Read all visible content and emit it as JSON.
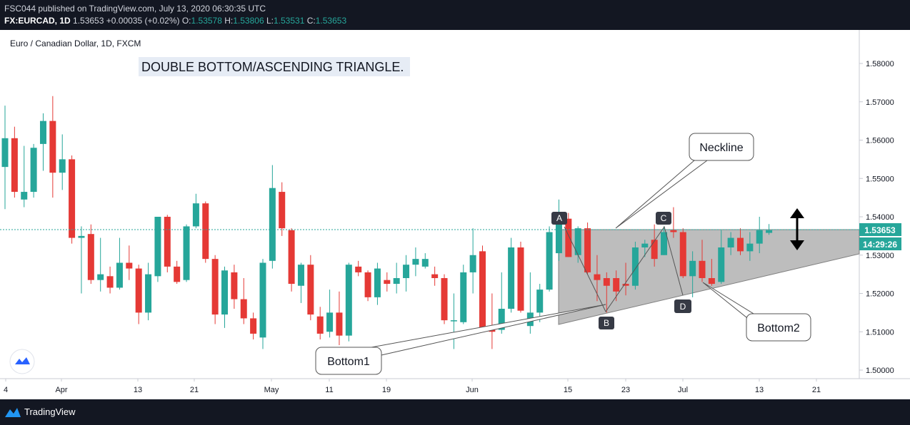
{
  "header": {
    "published": "FSC044 published on TradingView.com, July 13, 2020 06:30:35 UTC",
    "symbol": "FX:EURCAD, 1D",
    "price": "1.53653",
    "change": "+0.00035 (+0.02%)",
    "open_label": "O:",
    "open": "1.53578",
    "high_label": "H:",
    "high": "1.53806",
    "low_label": "L:",
    "low": "1.53531",
    "close_label": "C:",
    "close": "1.53653"
  },
  "chart_title": "Euro / Canadian Dollar, 1D, FXCM",
  "annotation_title": "DOUBLE BOTTOM/ASCENDING TRIANGLE.",
  "callouts": {
    "neckline": "Neckline",
    "bottom1": "Bottom1",
    "bottom2": "Bottom2"
  },
  "point_labels": [
    "A",
    "B",
    "C",
    "D"
  ],
  "price_badge": "1.53653",
  "time_badge": "14:29:26",
  "footer": {
    "brand": "TradingView"
  },
  "colors": {
    "up": "#26a69a",
    "down": "#e53935",
    "background": "#ffffff",
    "frame": "#131722",
    "badge": "#363a45",
    "triangle": "#b2b2b2"
  },
  "chart_data": {
    "type": "candlestick",
    "title": "Euro / Canadian Dollar, 1D, FXCM",
    "ylim": [
      1.4975,
      1.5855
    ],
    "y_ticks": [
      "1.58000",
      "1.57000",
      "1.56000",
      "1.55000",
      "1.54000",
      "1.53000",
      "1.52000",
      "1.51000",
      "1.50000"
    ],
    "x_ticks": [
      "4",
      "Apr",
      "13",
      "21",
      "May",
      "11",
      "19",
      "Jun",
      "15",
      "23",
      "Jul",
      "13",
      "21"
    ],
    "last_price": 1.53653,
    "candles": [
      {
        "o": 1.553,
        "h": 1.569,
        "l": 1.542,
        "c": 1.5605
      },
      {
        "o": 1.5605,
        "h": 1.5635,
        "l": 1.545,
        "c": 1.5465
      },
      {
        "o": 1.5445,
        "h": 1.5585,
        "l": 1.5425,
        "c": 1.5465
      },
      {
        "o": 1.5465,
        "h": 1.559,
        "l": 1.545,
        "c": 1.558
      },
      {
        "o": 1.559,
        "h": 1.567,
        "l": 1.552,
        "c": 1.565
      },
      {
        "o": 1.565,
        "h": 1.5715,
        "l": 1.545,
        "c": 1.5515
      },
      {
        "o": 1.5515,
        "h": 1.5615,
        "l": 1.547,
        "c": 1.555
      },
      {
        "o": 1.555,
        "h": 1.556,
        "l": 1.533,
        "c": 1.5345
      },
      {
        "o": 1.5345,
        "h": 1.5375,
        "l": 1.52,
        "c": 1.535
      },
      {
        "o": 1.5355,
        "h": 1.538,
        "l": 1.5225,
        "c": 1.5235
      },
      {
        "o": 1.5235,
        "h": 1.5345,
        "l": 1.5205,
        "c": 1.525
      },
      {
        "o": 1.5245,
        "h": 1.527,
        "l": 1.52,
        "c": 1.5215
      },
      {
        "o": 1.5215,
        "h": 1.5345,
        "l": 1.521,
        "c": 1.528
      },
      {
        "o": 1.528,
        "h": 1.5325,
        "l": 1.5235,
        "c": 1.5265
      },
      {
        "o": 1.5265,
        "h": 1.5275,
        "l": 1.512,
        "c": 1.515
      },
      {
        "o": 1.515,
        "h": 1.528,
        "l": 1.513,
        "c": 1.525
      },
      {
        "o": 1.5245,
        "h": 1.54,
        "l": 1.523,
        "c": 1.54
      },
      {
        "o": 1.54,
        "h": 1.5405,
        "l": 1.5255,
        "c": 1.527
      },
      {
        "o": 1.527,
        "h": 1.5285,
        "l": 1.5225,
        "c": 1.523
      },
      {
        "o": 1.5235,
        "h": 1.538,
        "l": 1.523,
        "c": 1.5375
      },
      {
        "o": 1.5375,
        "h": 1.546,
        "l": 1.537,
        "c": 1.5435
      },
      {
        "o": 1.5435,
        "h": 1.544,
        "l": 1.528,
        "c": 1.529
      },
      {
        "o": 1.529,
        "h": 1.53,
        "l": 1.512,
        "c": 1.5145
      },
      {
        "o": 1.5145,
        "h": 1.527,
        "l": 1.511,
        "c": 1.526
      },
      {
        "o": 1.5255,
        "h": 1.5275,
        "l": 1.516,
        "c": 1.5185
      },
      {
        "o": 1.5185,
        "h": 1.524,
        "l": 1.512,
        "c": 1.5135
      },
      {
        "o": 1.5135,
        "h": 1.515,
        "l": 1.508,
        "c": 1.5095
      },
      {
        "o": 1.5085,
        "h": 1.529,
        "l": 1.5055,
        "c": 1.528
      },
      {
        "o": 1.5285,
        "h": 1.5535,
        "l": 1.5265,
        "c": 1.5475
      },
      {
        "o": 1.5465,
        "h": 1.549,
        "l": 1.535,
        "c": 1.537
      },
      {
        "o": 1.5365,
        "h": 1.537,
        "l": 1.5205,
        "c": 1.5225
      },
      {
        "o": 1.522,
        "h": 1.528,
        "l": 1.5175,
        "c": 1.5275
      },
      {
        "o": 1.5275,
        "h": 1.53,
        "l": 1.513,
        "c": 1.5145
      },
      {
        "o": 1.514,
        "h": 1.5165,
        "l": 1.508,
        "c": 1.5095
      },
      {
        "o": 1.51,
        "h": 1.521,
        "l": 1.5085,
        "c": 1.515
      },
      {
        "o": 1.515,
        "h": 1.5205,
        "l": 1.5065,
        "c": 1.509
      },
      {
        "o": 1.509,
        "h": 1.528,
        "l": 1.5075,
        "c": 1.5275
      },
      {
        "o": 1.527,
        "h": 1.5285,
        "l": 1.5245,
        "c": 1.5255
      },
      {
        "o": 1.5255,
        "h": 1.526,
        "l": 1.518,
        "c": 1.519
      },
      {
        "o": 1.519,
        "h": 1.528,
        "l": 1.517,
        "c": 1.5265
      },
      {
        "o": 1.5235,
        "h": 1.5255,
        "l": 1.5205,
        "c": 1.5225
      },
      {
        "o": 1.5225,
        "h": 1.528,
        "l": 1.52,
        "c": 1.524
      },
      {
        "o": 1.524,
        "h": 1.53,
        "l": 1.5205,
        "c": 1.5275
      },
      {
        "o": 1.5275,
        "h": 1.532,
        "l": 1.5245,
        "c": 1.529
      },
      {
        "o": 1.527,
        "h": 1.5305,
        "l": 1.5265,
        "c": 1.529
      },
      {
        "o": 1.525,
        "h": 1.527,
        "l": 1.522,
        "c": 1.524
      },
      {
        "o": 1.524,
        "h": 1.525,
        "l": 1.512,
        "c": 1.513
      },
      {
        "o": 1.513,
        "h": 1.52,
        "l": 1.5055,
        "c": 1.513
      },
      {
        "o": 1.5125,
        "h": 1.5275,
        "l": 1.512,
        "c": 1.5255
      },
      {
        "o": 1.5255,
        "h": 1.537,
        "l": 1.52,
        "c": 1.53
      },
      {
        "o": 1.531,
        "h": 1.5325,
        "l": 1.51,
        "c": 1.511
      },
      {
        "o": 1.5115,
        "h": 1.52,
        "l": 1.5055,
        "c": 1.51
      },
      {
        "o": 1.5105,
        "h": 1.5255,
        "l": 1.5095,
        "c": 1.516
      },
      {
        "o": 1.516,
        "h": 1.5345,
        "l": 1.515,
        "c": 1.532
      },
      {
        "o": 1.532,
        "h": 1.5335,
        "l": 1.515,
        "c": 1.5155
      },
      {
        "o": 1.5115,
        "h": 1.5255,
        "l": 1.5095,
        "c": 1.515
      },
      {
        "o": 1.515,
        "h": 1.5225,
        "l": 1.5125,
        "c": 1.521
      },
      {
        "o": 1.521,
        "h": 1.5375,
        "l": 1.5205,
        "c": 1.536
      },
      {
        "o": 1.5305,
        "h": 1.5445,
        "l": 1.5285,
        "c": 1.5395
      },
      {
        "o": 1.5395,
        "h": 1.541,
        "l": 1.5295,
        "c": 1.5295
      },
      {
        "o": 1.53,
        "h": 1.5375,
        "l": 1.528,
        "c": 1.537
      },
      {
        "o": 1.537,
        "h": 1.5385,
        "l": 1.525,
        "c": 1.5255
      },
      {
        "o": 1.525,
        "h": 1.53,
        "l": 1.518,
        "c": 1.5235
      },
      {
        "o": 1.524,
        "h": 1.5255,
        "l": 1.515,
        "c": 1.522
      },
      {
        "o": 1.524,
        "h": 1.526,
        "l": 1.518,
        "c": 1.5205
      },
      {
        "o": 1.5225,
        "h": 1.528,
        "l": 1.5195,
        "c": 1.522
      },
      {
        "o": 1.522,
        "h": 1.5335,
        "l": 1.521,
        "c": 1.532
      },
      {
        "o": 1.532,
        "h": 1.534,
        "l": 1.5295,
        "c": 1.533
      },
      {
        "o": 1.534,
        "h": 1.538,
        "l": 1.527,
        "c": 1.529
      },
      {
        "o": 1.53,
        "h": 1.5375,
        "l": 1.53,
        "c": 1.536
      },
      {
        "o": 1.5365,
        "h": 1.5425,
        "l": 1.5345,
        "c": 1.536
      },
      {
        "o": 1.536,
        "h": 1.537,
        "l": 1.524,
        "c": 1.5245
      },
      {
        "o": 1.5245,
        "h": 1.531,
        "l": 1.519,
        "c": 1.5285
      },
      {
        "o": 1.5285,
        "h": 1.534,
        "l": 1.523,
        "c": 1.524
      },
      {
        "o": 1.524,
        "h": 1.529,
        "l": 1.522,
        "c": 1.5225
      },
      {
        "o": 1.523,
        "h": 1.5365,
        "l": 1.5225,
        "c": 1.532
      },
      {
        "o": 1.532,
        "h": 1.536,
        "l": 1.53,
        "c": 1.5345
      },
      {
        "o": 1.5345,
        "h": 1.537,
        "l": 1.53,
        "c": 1.531
      },
      {
        "o": 1.531,
        "h": 1.536,
        "l": 1.5285,
        "c": 1.533
      },
      {
        "o": 1.533,
        "h": 1.54,
        "l": 1.5305,
        "c": 1.5365
      },
      {
        "o": 1.5358,
        "h": 1.5381,
        "l": 1.5353,
        "c": 1.5365
      }
    ]
  }
}
